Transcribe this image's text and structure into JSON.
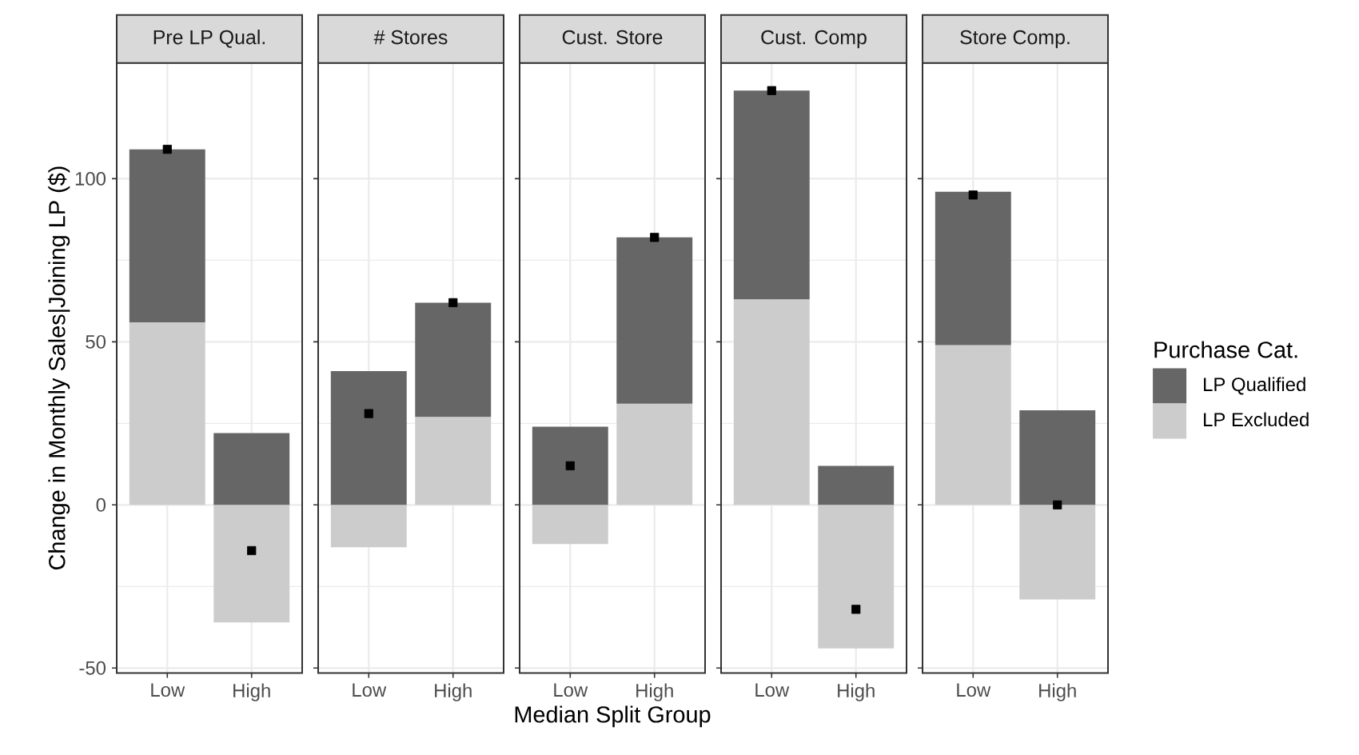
{
  "chart_data": [
    {
      "type": "bar",
      "title": "Pre LP Qual.",
      "ylabel": "Change in Monthly Sales|Joining LP ($)",
      "categories": [
        "Low",
        "High"
      ],
      "stacked": true,
      "grid": true,
      "ylim": [
        -51.5,
        135.5
      ],
      "yticks": [
        -50,
        0,
        50,
        100
      ],
      "series": [
        {
          "color": "#cccccc",
          "values": [
            56,
            -36
          ]
        },
        {
          "color": "#666666",
          "values": [
            53,
            22
          ]
        },
        {
          "type": "scatter",
          "marker": "square",
          "color": "#000000",
          "values": [
            109,
            -14
          ]
        }
      ]
    },
    {
      "type": "bar",
      "title": "# Stores",
      "categories": [
        "Low",
        "High"
      ],
      "stacked": true,
      "grid": true,
      "ylim": [
        -51.5,
        135.5
      ],
      "yticks": [
        -50,
        0,
        50,
        100
      ],
      "tick_labels": "x",
      "series": [
        {
          "color": "#cccccc",
          "values": [
            -13,
            27
          ]
        },
        {
          "color": "#666666",
          "values": [
            41,
            35
          ]
        },
        {
          "type": "scatter",
          "marker": "square",
          "color": "#000000",
          "values": [
            28,
            62
          ]
        }
      ]
    },
    {
      "type": "bar",
      "title": "Cust. Store",
      "xlabel": "Median Split Group",
      "categories": [
        "Low",
        "High"
      ],
      "stacked": true,
      "grid": true,
      "ylim": [
        -51.5,
        135.5
      ],
      "yticks": [
        -50,
        0,
        50,
        100
      ],
      "tick_labels": "x",
      "series": [
        {
          "color": "#cccccc",
          "values": [
            -12,
            31
          ]
        },
        {
          "color": "#666666",
          "values": [
            24,
            51
          ]
        },
        {
          "type": "scatter",
          "marker": "square",
          "color": "#000000",
          "values": [
            12,
            82
          ]
        }
      ]
    },
    {
      "type": "bar",
      "title": "Cust. Comp",
      "categories": [
        "Low",
        "High"
      ],
      "stacked": true,
      "grid": true,
      "ylim": [
        -51.5,
        135.5
      ],
      "yticks": [
        -50,
        0,
        50,
        100
      ],
      "tick_labels": "x",
      "series": [
        {
          "color": "#cccccc",
          "values": [
            63,
            -44
          ]
        },
        {
          "color": "#666666",
          "values": [
            64,
            12
          ]
        },
        {
          "type": "scatter",
          "marker": "square",
          "color": "#000000",
          "values": [
            127,
            -32
          ]
        }
      ]
    },
    {
      "type": "bar",
      "title": "Store Comp.",
      "categories": [
        "Low",
        "High"
      ],
      "stacked": true,
      "grid": true,
      "ylim": [
        -51.5,
        135.5
      ],
      "yticks": [
        -50,
        0,
        50,
        100
      ],
      "tick_labels": "x",
      "legend": "right",
      "legend_title": "Purchase Cat.",
      "series": [
        {
          "name": "LP Excluded",
          "color": "#cccccc",
          "values": [
            49,
            -29
          ]
        },
        {
          "name": "LP Qualified",
          "color": "#666666",
          "values": [
            47,
            29
          ]
        },
        {
          "type": "scatter",
          "marker": "square",
          "color": "#000000",
          "values": [
            95,
            0
          ]
        }
      ]
    }
  ]
}
